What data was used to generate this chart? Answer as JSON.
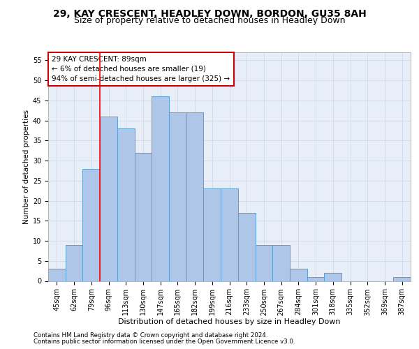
{
  "title1": "29, KAY CRESCENT, HEADLEY DOWN, BORDON, GU35 8AH",
  "title2": "Size of property relative to detached houses in Headley Down",
  "xlabel": "Distribution of detached houses by size in Headley Down",
  "ylabel": "Number of detached properties",
  "footnote1": "Contains HM Land Registry data © Crown copyright and database right 2024.",
  "footnote2": "Contains public sector information licensed under the Open Government Licence v3.0.",
  "annotation_line1": "29 KAY CRESCENT: 89sqm",
  "annotation_line2": "← 6% of detached houses are smaller (19)",
  "annotation_line3": "94% of semi-detached houses are larger (325) →",
  "bar_labels": [
    "45sqm",
    "62sqm",
    "79sqm",
    "96sqm",
    "113sqm",
    "130sqm",
    "147sqm",
    "165sqm",
    "182sqm",
    "199sqm",
    "216sqm",
    "233sqm",
    "250sqm",
    "267sqm",
    "284sqm",
    "301sqm",
    "318sqm",
    "335sqm",
    "352sqm",
    "369sqm",
    "387sqm"
  ],
  "bar_values": [
    3,
    9,
    28,
    41,
    38,
    32,
    46,
    42,
    42,
    23,
    23,
    17,
    9,
    9,
    3,
    1,
    2,
    0,
    0,
    0,
    1
  ],
  "bar_color": "#aec6e8",
  "bar_edge_color": "#5a9fd4",
  "red_line_x": 2.5,
  "ylim": [
    0,
    57
  ],
  "yticks": [
    0,
    5,
    10,
    15,
    20,
    25,
    30,
    35,
    40,
    45,
    50,
    55
  ],
  "grid_color": "#d0d8e8",
  "background_color": "#e8eef8",
  "annotation_box_color": "#ffffff",
  "annotation_box_edge_color": "#cc0000",
  "title1_fontsize": 10,
  "title2_fontsize": 9,
  "annotation_fontsize": 7.5,
  "axis_fontsize": 7,
  "xlabel_fontsize": 8,
  "ylabel_fontsize": 7.5,
  "footnote_fontsize": 6.2
}
